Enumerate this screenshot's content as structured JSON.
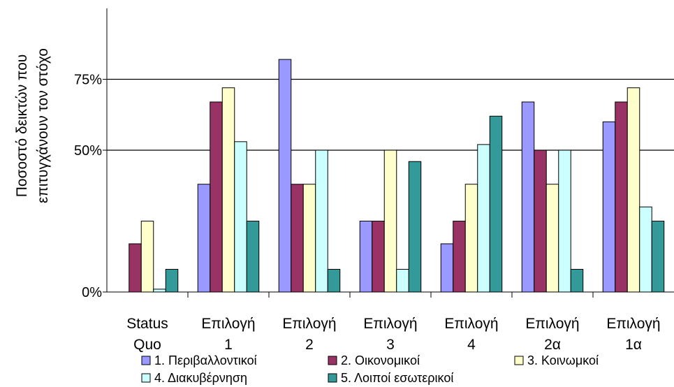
{
  "chart_data": {
    "type": "bar",
    "title": "",
    "ylabel_lines": [
      "Ποσοστό δεικτών που",
      "επιτυγχάνουν  τον στόχο"
    ],
    "y_ticks": [
      "0%",
      "50%",
      "75%"
    ],
    "y_tick_values": [
      0,
      50,
      75
    ],
    "ylim": [
      0,
      100
    ],
    "reference_lines": [
      50,
      75
    ],
    "grid": false,
    "legend_position": "bottom",
    "categories": [
      {
        "line1": "Status",
        "line2": "Quo"
      },
      {
        "line1": "Επιλογή",
        "line2": "1"
      },
      {
        "line1": "Επιλογή",
        "line2": "2"
      },
      {
        "line1": "Επιλογή",
        "line2": "3"
      },
      {
        "line1": "Επιλογή",
        "line2": "4"
      },
      {
        "line1": "Επιλογή",
        "line2": "2α"
      },
      {
        "line1": "Επιλογή",
        "line2": "1α"
      }
    ],
    "series": [
      {
        "name": "1. Περιβαλλοντικοί",
        "color": "#9999ff",
        "values": [
          0,
          38,
          82,
          25,
          17,
          67,
          60
        ]
      },
      {
        "name": "2. Οικονομικοί",
        "color": "#993366",
        "values": [
          17,
          67,
          38,
          25,
          25,
          50,
          67
        ]
      },
      {
        "name": "3. Κοινωμκοί",
        "color": "#ffffcc",
        "values": [
          25,
          72,
          38,
          50,
          38,
          38,
          72
        ]
      },
      {
        "name": "4. Διακυβέρνηση",
        "color": "#ccffff",
        "values": [
          1,
          53,
          50,
          8,
          52,
          50,
          30
        ]
      },
      {
        "name": "5. Λοιποί εσωτερικοί",
        "color": "#339999",
        "values": [
          8,
          25,
          8,
          46,
          62,
          8,
          25
        ]
      }
    ]
  }
}
